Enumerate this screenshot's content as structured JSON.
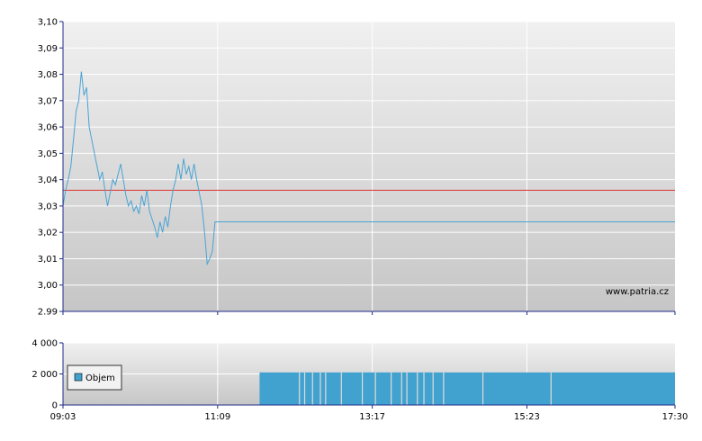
{
  "chart_data": [
    {
      "type": "line",
      "panel": "price",
      "ylim": [
        2.99,
        3.1
      ],
      "yticks": [
        "3,10",
        "3,09",
        "3,08",
        "3,07",
        "3,06",
        "3,05",
        "3,04",
        "3,03",
        "3,02",
        "3,01",
        "3,00",
        "2.99"
      ],
      "ytick_values": [
        3.1,
        3.09,
        3.08,
        3.07,
        3.06,
        3.05,
        3.04,
        3.03,
        3.02,
        3.01,
        3.0,
        2.99
      ],
      "reference_line": 3.036,
      "watermark": "www.patria.cz",
      "series": [
        {
          "x_min": [
            0,
            2,
            4,
            6,
            8,
            10,
            12,
            14,
            16,
            18,
            20,
            22,
            24,
            26,
            28,
            30,
            32,
            34,
            36,
            38,
            40,
            42,
            44,
            46,
            48,
            50,
            52,
            54,
            56,
            58,
            60,
            62,
            64,
            66,
            68,
            70,
            72,
            74,
            76,
            78,
            80,
            82,
            84,
            86,
            88,
            90,
            92,
            94,
            96,
            98,
            100,
            102,
            104,
            106,
            108,
            110,
            112,
            114,
            116,
            118,
            120,
            122,
            124,
            126,
            128,
            130,
            132,
            134,
            136,
            138,
            140,
            142,
            144,
            146,
            148,
            150,
            152,
            154,
            156,
            158,
            160,
            162,
            164,
            165,
            167,
            170,
            175,
            180,
            190,
            200,
            220,
            260,
            300,
            340,
            380,
            420,
            467
          ],
          "y": [
            3.03,
            3.036,
            3.04,
            3.045,
            3.055,
            3.066,
            3.07,
            3.081,
            3.072,
            3.075,
            3.06,
            3.055,
            3.05,
            3.045,
            3.04,
            3.043,
            3.036,
            3.03,
            3.035,
            3.04,
            3.038,
            3.042,
            3.046,
            3.04,
            3.034,
            3.03,
            3.032,
            3.028,
            3.03,
            3.027,
            3.034,
            3.03,
            3.036,
            3.028,
            3.025,
            3.022,
            3.018,
            3.024,
            3.02,
            3.026,
            3.022,
            3.03,
            3.036,
            3.04,
            3.046,
            3.04,
            3.048,
            3.042,
            3.045,
            3.04,
            3.046,
            3.04,
            3.035,
            3.03,
            3.02,
            3.008,
            3.01,
            3.013,
            3.024,
            3.024,
            3.024,
            3.024,
            3.024,
            3.024,
            3.024,
            3.024,
            3.024,
            3.024,
            3.024,
            3.024,
            3.024,
            3.024,
            3.024,
            3.024,
            3.024,
            3.024,
            3.024,
            3.024,
            3.024,
            3.024,
            3.024,
            3.024,
            3.024,
            3.024,
            3.024,
            3.024,
            3.024,
            3.024,
            3.024,
            3.024,
            3.024,
            3.024,
            3.024,
            3.024,
            3.024,
            3.024,
            3.024
          ]
        }
      ]
    },
    {
      "type": "bar",
      "panel": "volume",
      "ylim": [
        0,
        4000
      ],
      "yticks": [
        "4 000",
        "2 000",
        "0"
      ],
      "ytick_values": [
        4000,
        2000,
        0
      ],
      "legend": "Objem",
      "legend_position": "middle-left",
      "bar_value": 2100,
      "bar_start_min": 150,
      "bar_end_min": 467,
      "gap_minutes": [
        180,
        184,
        190,
        196,
        200,
        212,
        228,
        238,
        250,
        258,
        262,
        270,
        275,
        282,
        290,
        320,
        372
      ]
    }
  ],
  "x_axis": {
    "start_min": 0,
    "end_min": 467,
    "ticks": [
      {
        "label": "09:03",
        "min": 0
      },
      {
        "label": "11:09",
        "min": 118
      },
      {
        "label": "13:17",
        "min": 236
      },
      {
        "label": "15:23",
        "min": 354
      },
      {
        "label": "17:30",
        "min": 467
      }
    ]
  },
  "colors": {
    "line": "#4aa3d4",
    "bar": "#42a2cf",
    "reference": "#e03030",
    "axis": "#1f2b88",
    "grid": "#ffffff",
    "bg_top": "#efefef",
    "bg_bottom": "#c8c8c8"
  }
}
